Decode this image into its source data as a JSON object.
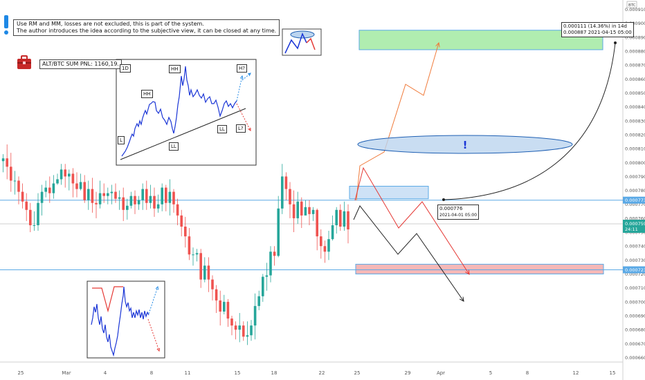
{
  "header": {
    "note_lines": [
      "Use RM and MM, losses are not excluded, this is part of the system.",
      "The author introduces the idea according to the subjective view, it can be closed at any time."
    ],
    "pnl_label": "ALT/BTC SUM PNL: 1160,19."
  },
  "inset": {
    "labels": {
      "tf": "1D",
      "hh1": "HH",
      "hh2": "HH",
      "l": "L",
      "ll1": "LL",
      "ll2": "LL",
      "hq": "H?",
      "lq": "L?"
    }
  },
  "callouts": {
    "target_line1": "0.000111 (14.36%) in 14d",
    "target_line2": "0.000887    2021-04-15  05:00",
    "point_price": "0.000776",
    "point_time": "2021-04-01 05:00",
    "exclaim": "!"
  },
  "colors": {
    "up": "#26a69a",
    "down": "#ef5350",
    "line_blue": "#1a35d6",
    "level": "#5aa9e6"
  },
  "chart_data": {
    "type": "candlestick",
    "quote_label": "BTC",
    "ylim": [
      0.000662,
      0.000915
    ],
    "y_ticks": [
      "0.000910",
      "0.000900",
      "0.000890",
      "0.000880",
      "0.000870",
      "0.000860",
      "0.000850",
      "0.000840",
      "0.000830",
      "0.000820",
      "0.000810",
      "0.000800",
      "0.000790",
      "0.000780",
      "0.000770",
      "0.000760",
      "0.000750",
      "0.000740",
      "0.000730",
      "0.000720",
      "0.000710",
      "0.000700",
      "0.000690",
      "0.000680",
      "0.000670",
      "0.000660"
    ],
    "x_ticks": [
      "25",
      "Mar",
      "4",
      "8",
      "11",
      "15",
      "18",
      "22",
      "25",
      "29",
      "Apr",
      "5",
      "8",
      "12",
      "15"
    ],
    "price_tags": {
      "level_high": "0.000773",
      "last": "0.000759",
      "countdown": "24:11",
      "level_low": "0.000723"
    },
    "levels": [
      0.000773,
      0.000723
    ],
    "zones": [
      {
        "name": "target",
        "from": 0.000881,
        "to": 0.000895,
        "color": "#7ee07e"
      },
      {
        "name": "entry",
        "from": 0.000774,
        "to": 0.000783,
        "color": "#b9d6f2"
      },
      {
        "name": "stop",
        "from": 0.00072,
        "to": 0.000727,
        "color": "#f3a0a0"
      }
    ],
    "candles": [
      [
        -30,
        0.000777,
        0.000771,
        0.000784,
        0.000765
      ],
      [
        -29,
        0.000771,
        0.000777,
        0.000784,
        0.000766
      ],
      [
        -28,
        0.000777,
        0.000768,
        0.000785,
        0.000762
      ],
      [
        -27,
        0.000768,
        0.000774,
        0.000781,
        0.000763
      ],
      [
        -26,
        0.000774,
        0.000782,
        0.000785,
        0.000764
      ],
      [
        -25,
        0.000782,
        0.000789,
        0.000792,
        0.000775
      ],
      [
        -24,
        0.000789,
        0.000803,
        0.000809,
        0.000781
      ],
      [
        -23,
        0.000803,
        0.00079,
        0.00081,
        0.000781
      ],
      [
        -22,
        0.00079,
        0.000784,
        0.000801,
        0.000775
      ],
      [
        -21,
        0.000784,
        0.0008,
        0.000806,
        0.000775
      ],
      [
        -20,
        0.0008,
        0.000827,
        0.000833,
        0.000793
      ],
      [
        -19,
        0.000827,
        0.00083,
        0.000839,
        0.000817
      ],
      [
        -18,
        0.00083,
        0.000836,
        0.000843,
        0.000824
      ],
      [
        -17,
        0.000836,
        0.000843,
        0.000846,
        0.000834
      ],
      [
        -16,
        0.000843,
        0.000821,
        0.000851,
        0.000814
      ],
      [
        -15,
        0.000821,
        0.000823,
        0.000832,
        0.000814
      ],
      [
        -14,
        0.000823,
        0.00084,
        0.000848,
        0.000816
      ],
      [
        -13,
        0.00084,
        0.000833,
        0.000846,
        0.000828
      ],
      [
        -12,
        0.000833,
        0.000821,
        0.000836,
        0.000814
      ],
      [
        -11,
        0.000821,
        0.000815,
        0.000828,
        0.000809
      ],
      [
        -10,
        0.000815,
        0.00081,
        0.000826,
        0.000805
      ],
      [
        -9,
        0.00081,
        0.000828,
        0.000832,
        0.000806
      ],
      [
        -8,
        0.000828,
        0.000815,
        0.000837,
        0.000812
      ],
      [
        -7,
        0.000815,
        0.000817,
        0.000821,
        0.000806
      ],
      [
        -6,
        0.000817,
        0.000798,
        0.000823,
        0.000791
      ],
      [
        -5,
        0.000798,
        0.000801,
        0.00081,
        0.000797
      ],
      [
        -4,
        0.000801,
        0.000803,
        0.000806,
        0.000793
      ],
      [
        -3,
        0.000803,
        0.000797,
        0.000813,
        0.000788
      ],
      [
        -2,
        0.000797,
        0.000787,
        0.000807,
        0.000779
      ],
      [
        -1,
        0.000787,
        0.000787,
        0.000794,
        0.000777
      ],
      [
        0,
        0.000787,
        0.000779,
        0.00079,
        0.00077
      ],
      [
        1,
        0.000779,
        0.000772,
        0.000785,
        0.000767
      ],
      [
        2,
        0.000772,
        0.000766,
        0.000778,
        0.000758
      ],
      [
        3,
        0.000766,
        0.000755,
        0.000771,
        0.00075
      ],
      [
        4,
        0.000755,
        0.000755,
        0.000765,
        0.000751
      ],
      [
        5,
        0.000755,
        0.000771,
        0.000778,
        0.000751
      ],
      [
        6,
        0.000771,
        0.000779,
        0.000784,
        0.000762
      ],
      [
        7,
        0.000779,
        0.000782,
        0.000787,
        0.000775
      ],
      [
        8,
        0.000782,
        0.000778,
        0.00079,
        0.000771
      ],
      [
        9,
        0.000778,
        0.000785,
        0.000791,
        0.000774
      ],
      [
        10,
        0.000785,
        0.000788,
        0.000792,
        0.000784
      ],
      [
        11,
        0.000788,
        0.000795,
        0.000799,
        0.000784
      ],
      [
        12,
        0.000795,
        0.00079,
        0.000799,
        0.000782
      ],
      [
        13,
        0.00079,
        0.000792,
        0.000795,
        0.00078
      ],
      [
        14,
        0.000792,
        0.000785,
        0.000796,
        0.000775
      ],
      [
        15,
        0.000785,
        0.000781,
        0.000793,
        0.000775
      ],
      [
        16,
        0.000781,
        0.000786,
        0.000792,
        0.00078
      ],
      [
        17,
        0.000786,
        0.000773,
        0.000791,
        0.000771
      ],
      [
        18,
        0.000773,
        0.000781,
        0.000787,
        0.000766
      ],
      [
        19,
        0.000781,
        0.000771,
        0.000789,
        0.000764
      ],
      [
        20,
        0.000771,
        0.00077,
        0.000779,
        0.00076
      ],
      [
        21,
        0.00077,
        0.000778,
        0.000787,
        0.000767
      ],
      [
        22,
        0.000778,
        0.000776,
        0.000785,
        0.000771
      ],
      [
        23,
        0.000776,
        0.000778,
        0.000782,
        0.00077
      ],
      [
        24,
        0.000778,
        0.000779,
        0.000784,
        0.00077
      ],
      [
        25,
        0.000779,
        0.000774,
        0.000785,
        0.000771
      ],
      [
        26,
        0.000774,
        0.000775,
        0.00078,
        0.000766
      ],
      [
        27,
        0.000775,
        0.000766,
        0.000782,
        0.000758
      ],
      [
        28,
        0.000766,
        0.000769,
        0.000774,
        0.000759
      ],
      [
        29,
        0.000769,
        0.000776,
        0.000779,
        0.000767
      ],
      [
        30,
        0.000776,
        0.00077,
        0.00078,
        0.000763
      ],
      [
        31,
        0.00077,
        0.000773,
        0.000776,
        0.000766
      ],
      [
        32,
        0.000773,
        0.000781,
        0.000785,
        0.000766
      ],
      [
        33,
        0.000781,
        0.000771,
        0.000787,
        0.000766
      ],
      [
        34,
        0.000771,
        0.000776,
        0.000784,
        0.000767
      ],
      [
        35,
        0.000776,
        0.000767,
        0.000782,
        0.000761
      ],
      [
        36,
        0.000767,
        0.00077,
        0.000777,
        0.000764
      ],
      [
        37,
        0.00077,
        0.000782,
        0.000785,
        0.000765
      ],
      [
        38,
        0.000782,
        0.000771,
        0.000784,
        0.000765
      ],
      [
        39,
        0.000771,
        0.000779,
        0.000788,
        0.000762
      ],
      [
        40,
        0.000779,
        0.00077,
        0.000781,
        0.000764
      ],
      [
        41,
        0.00077,
        0.000762,
        0.000774,
        0.000755
      ],
      [
        42,
        0.000762,
        0.000754,
        0.000766,
        0.000747
      ],
      [
        43,
        0.000754,
        0.000747,
        0.000761,
        0.000739
      ],
      [
        44,
        0.000747,
        0.000734,
        0.000753,
        0.00073
      ],
      [
        45,
        0.000734,
        0.000734,
        0.000739,
        0.000726
      ],
      [
        46,
        0.000734,
        0.000735,
        0.000738,
        0.000729
      ],
      [
        47,
        0.000735,
        0.000716,
        0.000738,
        0.00071
      ],
      [
        48,
        0.000716,
        0.000726,
        0.000732,
        0.000714
      ],
      [
        49,
        0.000726,
        0.000716,
        0.000732,
        0.000707
      ],
      [
        50,
        0.000716,
        0.000709,
        0.000719,
        0.000701
      ],
      [
        51,
        0.000709,
        0.000701,
        0.000712,
        0.000692
      ],
      [
        52,
        0.000701,
        0.000693,
        0.000708,
        0.000683
      ],
      [
        53,
        0.000693,
        0.0007,
        0.000705,
        0.000691
      ],
      [
        54,
        0.0007,
        0.000688,
        0.000702,
        0.000682
      ],
      [
        55,
        0.000688,
        0.000683,
        0.00069,
        0.000676
      ],
      [
        56,
        0.000683,
        0.00068,
        0.000686,
        0.000673
      ],
      [
        57,
        0.00068,
        0.000683,
        0.000692,
        0.000671
      ],
      [
        58,
        0.000683,
        0.000675,
        0.000686,
        0.000672
      ],
      [
        59,
        0.000675,
        0.000676,
        0.000686,
        0.000669
      ],
      [
        60,
        0.000676,
        0.000683,
        0.000687,
        0.000672
      ],
      [
        61,
        0.000683,
        0.000697,
        0.000706,
        0.000673
      ],
      [
        62,
        0.000697,
        0.000704,
        0.000708,
        0.000694
      ],
      [
        63,
        0.000704,
        0.000718,
        0.00072,
        0.0007
      ],
      [
        64,
        0.000718,
        0.000719,
        0.000728,
        0.000708
      ],
      [
        65,
        0.000719,
        0.000736,
        0.00074,
        0.000714
      ],
      [
        66,
        0.000736,
        0.000733,
        0.00074,
        0.000726
      ],
      [
        67,
        0.000733,
        0.000767,
        0.000776,
        0.000732
      ],
      [
        68,
        0.000767,
        0.00079,
        0.000799,
        0.000763
      ],
      [
        69,
        0.00079,
        0.000781,
        0.000793,
        0.000773
      ],
      [
        70,
        0.000781,
        0.00077,
        0.000786,
        0.00076
      ],
      [
        71,
        0.00077,
        0.00076,
        0.00078,
        0.00075
      ],
      [
        72,
        0.00076,
        0.000772,
        0.000779,
        0.000756
      ],
      [
        73,
        0.000772,
        0.000762,
        0.000775,
        0.000753
      ],
      [
        74,
        0.000762,
        0.000768,
        0.000773,
        0.000764
      ],
      [
        75,
        0.000768,
        0.000763,
        0.000773,
        0.000755
      ],
      [
        76,
        0.000763,
        0.000766,
        0.000768,
        0.000758
      ],
      [
        77,
        0.000766,
        0.000747,
        0.000767,
        0.000737
      ],
      [
        78,
        0.000747,
        0.00074,
        0.000752,
        0.000731
      ],
      [
        79,
        0.00074,
        0.000736,
        0.000744,
        0.000728
      ],
      [
        80,
        0.000736,
        0.000745,
        0.000751,
        0.00073
      ],
      [
        81,
        0.000745,
        0.000755,
        0.000762,
        0.000744
      ],
      [
        82,
        0.000755,
        0.000766,
        0.000768,
        0.000749
      ],
      [
        83,
        0.000766,
        0.000754,
        0.00077,
        0.000751
      ],
      [
        84,
        0.000754,
        0.000765,
        0.000772,
        0.000751
      ],
      [
        85,
        0.000765,
        0.000752,
        0.00077,
        0.000742
      ],
      [
        86,
        0.000752,
        0.00076,
        0.00077,
        0.000747
      ],
      [
        87,
        0.00076,
        0.000761,
        0.000768,
        0.000754
      ],
      [
        88,
        0.000761,
        0.000759,
        0.000766,
        0.000753
      ]
    ]
  }
}
